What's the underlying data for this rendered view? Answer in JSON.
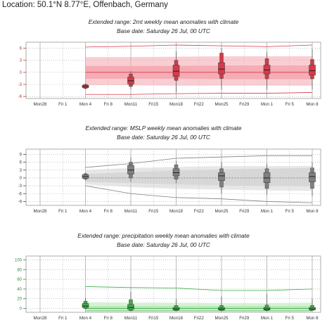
{
  "location": "Location: 50.1°N 8.77°E, Offenbach, Germany",
  "x_ticks": [
    "Mon28",
    "Fri 1",
    "Mon 4",
    "Fri 8",
    "Mon11",
    "Fri15",
    "Mon18",
    "Fri22",
    "Mon25",
    "Fri29",
    "Mon 1",
    "Fri 5",
    "Mon 8"
  ],
  "chart_data": [
    {
      "type": "box",
      "title": "Extended range: 2mt weekly mean anomalies with climate",
      "subtitle": "Base date: Saturday 26 Jul, 00 UTC",
      "ylim": [
        -6.5,
        7.5
      ],
      "yticks": [
        -6,
        -3,
        0,
        3,
        6
      ],
      "accent_color": "#d63a4a",
      "climate_color": "#f4a6ae",
      "axis_color": "#c0392b",
      "week_positions": [
        2,
        4,
        6,
        8,
        10,
        12
      ],
      "climate_start": 2,
      "climate": {
        "x": [
          2,
          4,
          6,
          8,
          10,
          12
        ],
        "min": [
          -5.5,
          -5.5,
          -5.3,
          -5.2,
          -5.2,
          -5.0
        ],
        "p10": [
          -3.2,
          -3.2,
          -3.3,
          -3.3,
          -3.3,
          -3.3
        ],
        "p25": [
          -1.6,
          -1.6,
          -1.6,
          -1.7,
          -1.7,
          -1.7
        ],
        "median": [
          0,
          0,
          0,
          0,
          0,
          0
        ],
        "p75": [
          1.6,
          1.6,
          1.6,
          1.7,
          1.7,
          1.7
        ],
        "p90": [
          3.8,
          3.8,
          3.9,
          4.0,
          4.0,
          4.0
        ],
        "max": [
          6.3,
          6.5,
          6.8,
          6.6,
          6.4,
          6.8
        ]
      },
      "ensemble": [
        {
          "week": "Mon 4",
          "min": -4.2,
          "p10": -4.0,
          "p25": -3.8,
          "median": -3.5,
          "p75": -3.2,
          "p90": -3.0,
          "max": -2.8
        },
        {
          "week": "Mon11",
          "min": -4.2,
          "p10": -3.5,
          "p25": -2.9,
          "median": -2.1,
          "p75": -1.2,
          "p90": -0.4,
          "max": 0.3
        },
        {
          "week": "Mon18",
          "min": -5.0,
          "p10": -2.0,
          "p25": -1.0,
          "median": 0.3,
          "p75": 1.8,
          "p90": 3.0,
          "max": 5.2
        },
        {
          "week": "Mon25",
          "min": -4.3,
          "p10": -1.5,
          "p25": -0.4,
          "median": 0.8,
          "p75": 2.4,
          "p90": 4.8,
          "max": 6.0
        },
        {
          "week": "Mon 1",
          "min": -4.3,
          "p10": -1.6,
          "p25": -0.4,
          "median": 0.6,
          "p75": 1.8,
          "p90": 3.4,
          "max": 5.0
        },
        {
          "week": "Mon 8",
          "min": -4.3,
          "p10": -1.6,
          "p25": -0.7,
          "median": 0.4,
          "p75": 1.8,
          "p90": 3.2,
          "max": 5.8
        }
      ]
    },
    {
      "type": "box",
      "title": "Extended range: MSLP weekly mean anomalies with climate",
      "subtitle": "Base date: Saturday 26 Jul, 00 UTC",
      "ylim": [
        -10.5,
        11
      ],
      "yticks": [
        -9,
        -6,
        -3,
        0,
        3,
        6,
        9
      ],
      "accent_color": "#808080",
      "climate_color": "#d4d4d4",
      "axis_color": "#444444",
      "week_positions": [
        2,
        4,
        6,
        8,
        10,
        12
      ],
      "climate_start": 2,
      "climate": {
        "x": [
          2,
          4,
          6,
          8,
          10,
          12
        ],
        "min": [
          -3.0,
          -6.0,
          -7.5,
          -8.0,
          -9.0,
          -9.5
        ],
        "p10": [
          -2.5,
          -3.5,
          -4.2,
          -4.5,
          -4.8,
          -5.0
        ],
        "p25": [
          -1.5,
          -2.0,
          -2.5,
          -2.8,
          -3.0,
          -3.2
        ],
        "median": [
          0,
          0,
          0,
          0,
          0,
          0
        ],
        "p75": [
          1.5,
          2.2,
          2.8,
          3.2,
          3.5,
          3.8
        ],
        "p90": [
          3.0,
          3.8,
          4.2,
          4.5,
          4.5,
          4.6
        ],
        "max": [
          4.0,
          5.5,
          7.5,
          8.0,
          8.5,
          8.5
        ]
      },
      "ensemble": [
        {
          "week": "Mon 4",
          "min": -1.0,
          "p10": -0.5,
          "p25": -0.1,
          "median": 0.5,
          "p75": 1.2,
          "p90": 1.6,
          "max": 2.0
        },
        {
          "week": "Mon11",
          "min": -1.5,
          "p10": 0.0,
          "p25": 1.5,
          "median": 3.0,
          "p75": 4.8,
          "p90": 6.0,
          "max": 7.8
        },
        {
          "week": "Mon18",
          "min": -2.0,
          "p10": -0.5,
          "p25": 0.8,
          "median": 2.0,
          "p75": 3.5,
          "p90": 5.0,
          "max": 6.5
        },
        {
          "week": "Mon25",
          "min": -6.0,
          "p10": -3.5,
          "p25": -1.0,
          "median": 0.8,
          "p75": 2.0,
          "p90": 3.5,
          "max": 6.0
        },
        {
          "week": "Mon 1",
          "min": -6.5,
          "p10": -4.0,
          "p25": -1.8,
          "median": 0.0,
          "p75": 2.0,
          "p90": 3.5,
          "max": 5.5
        },
        {
          "week": "Mon 8",
          "min": -7.0,
          "p10": -4.0,
          "p25": -1.5,
          "median": 0.5,
          "p75": 2.0,
          "p90": 3.8,
          "max": 6.0
        }
      ]
    },
    {
      "type": "box",
      "title": "Extended range: precipitation weekly mean anomalies with climate",
      "subtitle": "Base date: Saturday 26 Jul, 00 UTC",
      "ylim": [
        -8,
        108
      ],
      "yticks": [
        0,
        20,
        40,
        60,
        80,
        100
      ],
      "accent_color": "#3fae49",
      "climate_color": "#b5e8b0",
      "axis_color": "#2e8b3a",
      "week_positions": [
        2,
        4,
        6,
        8,
        10,
        12
      ],
      "climate_start": 2,
      "climate": {
        "x": [
          2,
          4,
          6,
          8,
          10,
          12
        ],
        "min": [
          -5,
          -5,
          -5,
          -5,
          -5,
          -5
        ],
        "p10": [
          -4,
          -4,
          -4,
          -4,
          -4,
          -4
        ],
        "p25": [
          -2,
          -2,
          -2,
          -2,
          -2,
          -2
        ],
        "median": [
          0,
          0,
          0,
          0,
          0,
          0
        ],
        "p75": [
          5,
          5,
          5,
          5,
          5,
          5
        ],
        "p90": [
          13,
          12,
          12,
          11,
          11,
          12
        ],
        "max": [
          45,
          43,
          42,
          37,
          37,
          40
        ]
      },
      "ensemble": [
        {
          "week": "Mon 4",
          "min": -2,
          "p10": 0,
          "p25": 2,
          "median": 5,
          "p75": 10,
          "p90": 15,
          "max": 22
        },
        {
          "week": "Mon11",
          "min": -5,
          "p10": -4,
          "p25": -2,
          "median": 2,
          "p75": 8,
          "p90": 18,
          "max": 35
        },
        {
          "week": "Mon18",
          "min": -5,
          "p10": -4,
          "p25": -3,
          "median": -1,
          "p75": 2,
          "p90": 6,
          "max": 20
        },
        {
          "week": "Mon25",
          "min": -5,
          "p10": -4,
          "p25": -3,
          "median": -1,
          "p75": 2,
          "p90": 6,
          "max": 25
        },
        {
          "week": "Mon 1",
          "min": -5,
          "p10": -4,
          "p25": -3,
          "median": -1,
          "p75": 2,
          "p90": 7,
          "max": 30
        },
        {
          "week": "Mon 8",
          "min": -5,
          "p10": -4,
          "p25": -3,
          "median": -1,
          "p75": 2,
          "p90": 6,
          "max": 20
        }
      ]
    }
  ]
}
